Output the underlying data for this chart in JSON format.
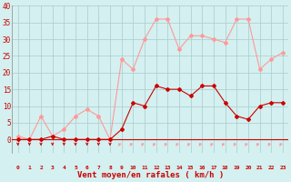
{
  "hours": [
    0,
    1,
    2,
    3,
    4,
    5,
    6,
    7,
    8,
    9,
    10,
    11,
    12,
    13,
    14,
    15,
    16,
    17,
    18,
    19,
    20,
    21,
    22,
    23
  ],
  "wind_avg": [
    0,
    0,
    0,
    1,
    0,
    0,
    0,
    0,
    0,
    3,
    11,
    10,
    16,
    15,
    15,
    13,
    16,
    16,
    11,
    7,
    6,
    10,
    11,
    11
  ],
  "wind_gust": [
    1,
    0,
    7,
    1,
    3,
    7,
    9,
    7,
    0,
    24,
    21,
    30,
    36,
    36,
    27,
    31,
    31,
    30,
    29,
    36,
    36,
    21,
    24,
    26
  ],
  "avg_color": "#cc0000",
  "gust_color": "#ff9999",
  "bg_color": "#d4f0f0",
  "grid_color": "#aacccc",
  "xlabel": "Vent moyen/en rafales ( km/h )",
  "xlabel_color": "#cc0000",
  "ylim": [
    -4,
    40
  ],
  "yplot_min": 0,
  "yplot_max": 40,
  "yticks": [
    0,
    5,
    10,
    15,
    20,
    25,
    30,
    35,
    40
  ]
}
